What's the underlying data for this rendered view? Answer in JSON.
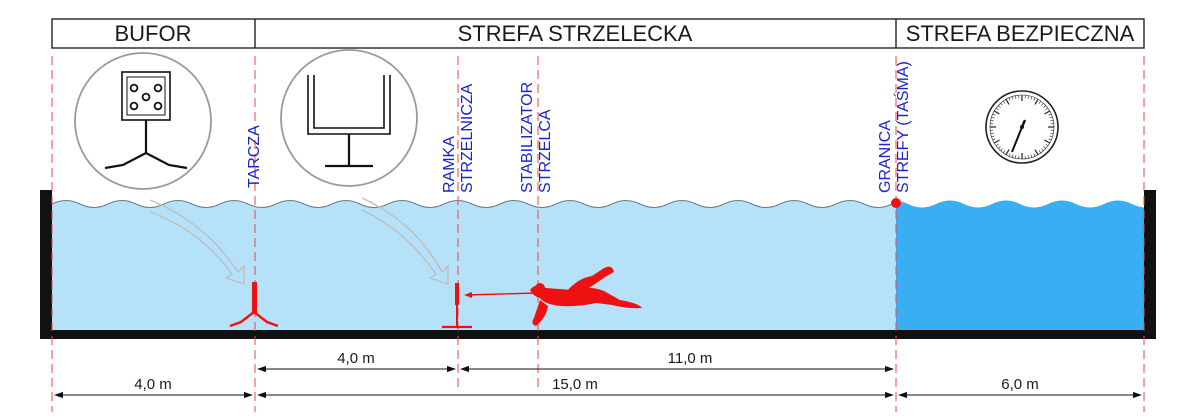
{
  "header": {
    "buffer_zone": "BUFOR",
    "shooting_zone": "STREFA STRZELECKA",
    "safe_zone": "STREFA BEZPIECZNA"
  },
  "labels": {
    "target": "TARCZA",
    "frame_line1": "RAMKA",
    "frame_line2": "STRZELNICZA",
    "stabilizer_line1": "STABILIZATOR",
    "stabilizer_line2": "STRZELCA",
    "boundary_line1": "GRANICA",
    "boundary_line2": "STREFY (TAŚMA)"
  },
  "dimensions": {
    "frame_to_target": "4,0 m",
    "stabilizer_to_boundary": "11,0 m",
    "buffer_length": "4,0 m",
    "shooting_length": "15,0 m",
    "safe_length": "6,0 m"
  },
  "colors": {
    "water_light": "#b5e2f8",
    "water_deep": "#3aaef2",
    "guide_red": "#ee4444",
    "label_blue": "#1a24c8",
    "swimmer_red": "#ee1111",
    "bottom": "#111111"
  },
  "icons": [
    "target-icon",
    "frame-icon",
    "stopwatch-icon",
    "spearfisher-icon"
  ]
}
